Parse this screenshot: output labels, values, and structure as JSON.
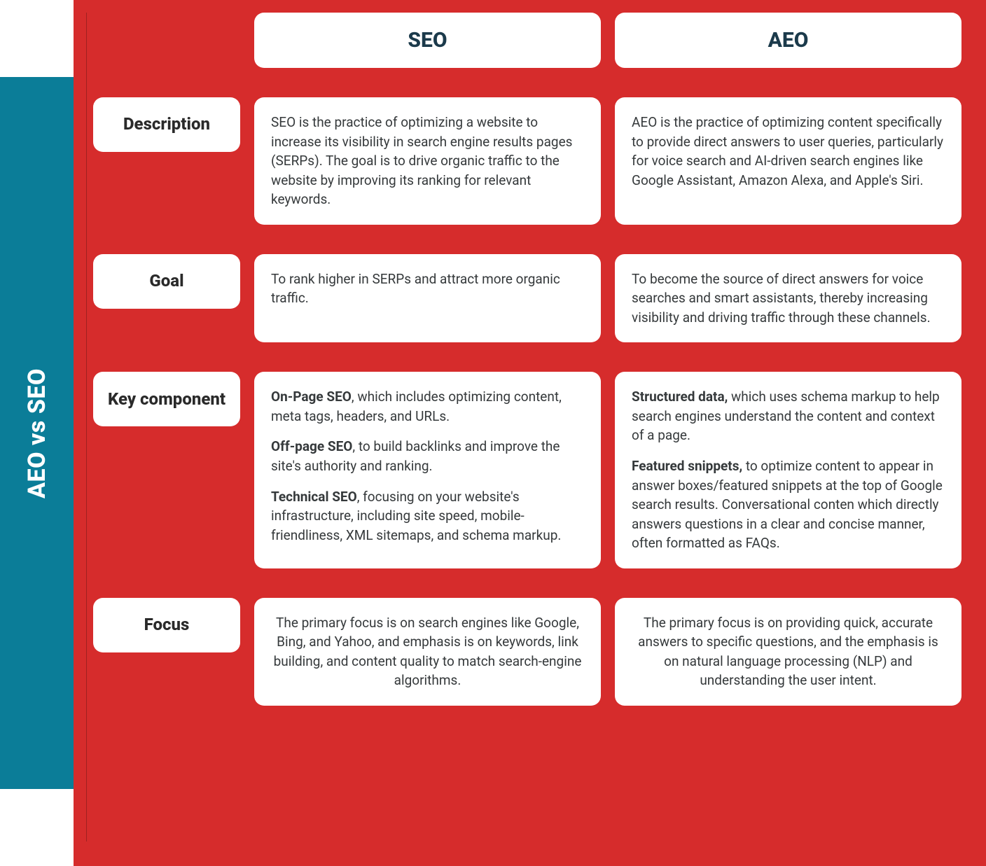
{
  "colors": {
    "background_red": "#d62c2c",
    "sidebar_teal": "#0b7d98",
    "card_bg": "#ffffff",
    "header_text": "#1b3a4b",
    "body_text": "#35393b",
    "label_text": "#2a2a2a",
    "divider": "rgba(0,0,0,0.25)"
  },
  "sidebar": {
    "title": "AEO vs SEO"
  },
  "columns": {
    "seo": "SEO",
    "aeo": "AEO"
  },
  "rows": {
    "description": {
      "label": "Description",
      "seo": "SEO is the practice of optimizing a website to increase its visibility in search engine results pages (SERPs). The goal is to drive organic traffic to the website by improving its ranking for relevant keywords.",
      "aeo": "AEO is the practice of optimizing content specifically to provide direct answers to user queries, particularly for voice search and AI-driven search engines like Google Assistant, Amazon Alexa, and Apple's Siri."
    },
    "goal": {
      "label": "Goal",
      "seo": "To rank higher in SERPs and attract more organic traffic.",
      "aeo": "To become the source of direct answers for voice searches and smart assistants, thereby increasing visibility and driving traffic through these channels."
    },
    "key_component": {
      "label": "Key component",
      "seo": {
        "p1_bold": "On-Page SEO",
        "p1_rest": ", which includes optimizing content, meta tags, headers, and URLs.",
        "p2_bold": "Off-page SEO",
        "p2_rest": ", to build backlinks and improve the site's authority and ranking.",
        "p3_bold": "Technical SEO",
        "p3_rest": ", focusing on your website's infrastructure, including site speed, mobile-friendliness, XML sitemaps, and schema markup."
      },
      "aeo": {
        "p1_bold": "Structured data,",
        "p1_rest": " which uses schema markup to help search engines understand the content and context of a page.",
        "p2_bold": "Featured snippets,",
        "p2_rest": " to optimize content to appear in answer boxes/featured snippets at the top of Google search results. Conversational conten which directly answers questions in a clear and concise manner, often formatted as FAQs."
      }
    },
    "focus": {
      "label": "Focus",
      "seo": "The primary focus is on search engines like Google, Bing, and Yahoo, and emphasis is on keywords, link building, and content quality to match search-engine algorithms.",
      "aeo": "The primary focus is on providing quick, accurate answers to specific questions, and the emphasis is on natural language processing (NLP) and understanding the user intent."
    }
  },
  "typography": {
    "sidebar_title_fontsize": 34,
    "header_fontsize": 30,
    "row_label_fontsize": 24,
    "body_fontsize": 19
  },
  "layout": {
    "card_border_radius": 14,
    "grid_columns": "210px 1fr 1fr",
    "column_gap": 20,
    "row_gap": 42
  }
}
